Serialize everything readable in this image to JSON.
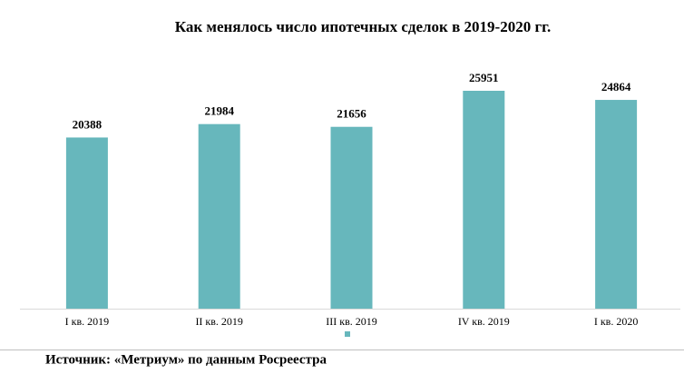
{
  "chart_data": {
    "type": "bar",
    "title": "Как менялось число ипотечных сделок в 2019-2020 гг.",
    "categories": [
      "I кв. 2019",
      "II кв. 2019",
      "III кв. 2019",
      "IV кв. 2019",
      "I кв. 2020"
    ],
    "values": [
      20388,
      21984,
      21656,
      25951,
      24864
    ],
    "color": "#67b7bc",
    "source": "Источник: «Метриум» по данным Росреестра"
  }
}
